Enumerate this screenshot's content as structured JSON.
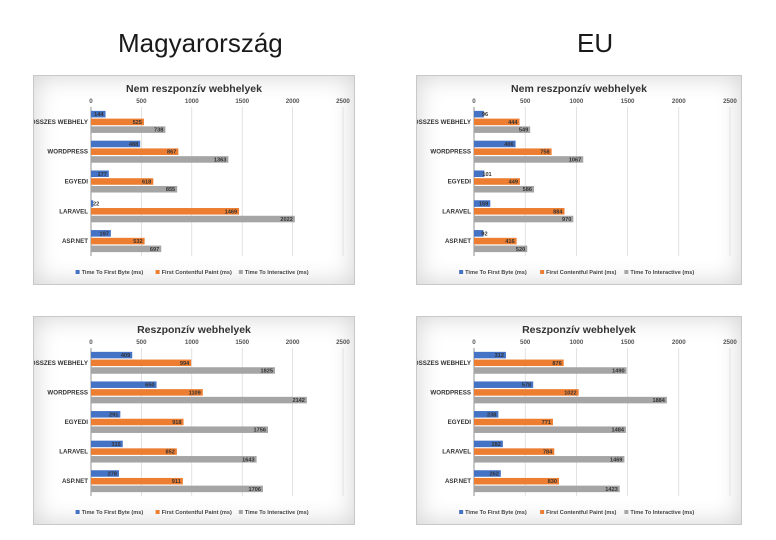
{
  "headings": {
    "left": "Magyarország",
    "right": "EU"
  },
  "colors": {
    "ttfb": "#4472c4",
    "fcp": "#ed7d31",
    "tti": "#a5a5a5"
  },
  "chart_data": [
    {
      "type": "bar",
      "title": "Nem reszponzív webhelyek",
      "categories": [
        "ÖSSZES WEBHELY",
        "WORDPRESS",
        "EGYEDI",
        "LARAVEL",
        "ASP.NET"
      ],
      "series": [
        {
          "name": "Time To First Byte (ms)",
          "values": [
            144,
            488,
            177,
            22,
            197
          ]
        },
        {
          "name": "First Contentful Paint (ms)",
          "values": [
            525,
            867,
            618,
            1469,
            532
          ]
        },
        {
          "name": "Time To Interactive (ms)",
          "values": [
            738,
            1363,
            855,
            2022,
            697
          ]
        }
      ],
      "xlim": [
        0,
        2500
      ],
      "xticks": [
        0,
        500,
        1000,
        1500,
        2000,
        2500
      ],
      "orientation": "horizontal",
      "legend": "bottom",
      "grid": true
    },
    {
      "type": "bar",
      "title": "Nem reszponzív webhelyek",
      "categories": [
        "ÖSSZES WEBHELY",
        "WORDPRESS",
        "EGYEDI",
        "LARAVEL",
        "ASP.NET"
      ],
      "series": [
        {
          "name": "Time To First Byte (ms)",
          "values": [
            96,
            406,
            101,
            159,
            92
          ]
        },
        {
          "name": "First Contentful Paint (ms)",
          "values": [
            444,
            758,
            449,
            884,
            416
          ]
        },
        {
          "name": "Time To Interactive (ms)",
          "values": [
            549,
            1067,
            586,
            970,
            520
          ]
        }
      ],
      "xlim": [
        0,
        2500
      ],
      "xticks": [
        0,
        500,
        1000,
        1500,
        2000,
        2500
      ],
      "orientation": "horizontal",
      "legend": "bottom",
      "grid": true
    },
    {
      "type": "bar",
      "title": "Reszponzív webhelyek",
      "categories": [
        "ÖSSZES WEBHELY",
        "WORDPRESS",
        "EGYEDI",
        "LARAVEL",
        "ASP.NET"
      ],
      "series": [
        {
          "name": "Time To First Byte (ms)",
          "values": [
            409,
            650,
            291,
            315,
            278
          ]
        },
        {
          "name": "First Contentful Paint (ms)",
          "values": [
            994,
            1109,
            918,
            852,
            911
          ]
        },
        {
          "name": "Time To Interactive (ms)",
          "values": [
            1825,
            2142,
            1756,
            1643,
            1706
          ]
        }
      ],
      "xlim": [
        0,
        2500
      ],
      "xticks": [
        0,
        500,
        1000,
        1500,
        2000,
        2500
      ],
      "orientation": "horizontal",
      "legend": "bottom",
      "grid": true
    },
    {
      "type": "bar",
      "title": "Reszponzív webhelyek",
      "categories": [
        "ÖSSZES WEBHELY",
        "WORDPRESS",
        "EGYEDI",
        "LARAVEL",
        "ASP.NET"
      ],
      "series": [
        {
          "name": "Time To First Byte (ms)",
          "values": [
            312,
            578,
            238,
            282,
            262
          ]
        },
        {
          "name": "First Contentful Paint (ms)",
          "values": [
            876,
            1022,
            771,
            784,
            830
          ]
        },
        {
          "name": "Time To Interactive (ms)",
          "values": [
            1490,
            1884,
            1484,
            1469,
            1423
          ]
        }
      ],
      "xlim": [
        0,
        2500
      ],
      "xticks": [
        0,
        500,
        1000,
        1500,
        2000,
        2500
      ],
      "orientation": "horizontal",
      "legend": "bottom",
      "grid": true
    }
  ]
}
